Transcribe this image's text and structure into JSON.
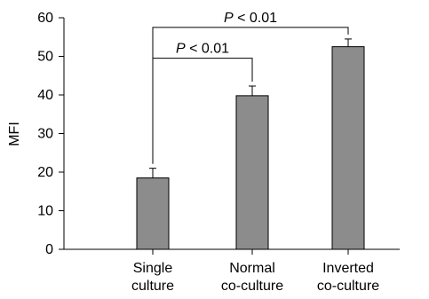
{
  "chart_data": {
    "type": "bar",
    "ylabel": "MFI",
    "ylim": [
      0,
      60
    ],
    "yticks": [
      0,
      10,
      20,
      30,
      40,
      50,
      60
    ],
    "categories": [
      [
        "Single",
        "culture"
      ],
      [
        "Normal",
        "co-culture"
      ],
      [
        "Inverted",
        "co-culture"
      ]
    ],
    "values": [
      18.5,
      39.8,
      52.5
    ],
    "errors": [
      2.5,
      2.5,
      2.0
    ],
    "bar_color": "#8c8c8c",
    "annotations": [
      {
        "from": 0,
        "to": 1,
        "y": 49.5,
        "p_symbol": "P",
        "text": "< 0.01"
      },
      {
        "from": 0,
        "to": 2,
        "y": 57.5,
        "p_symbol": "P",
        "text": "< 0.01"
      }
    ]
  }
}
